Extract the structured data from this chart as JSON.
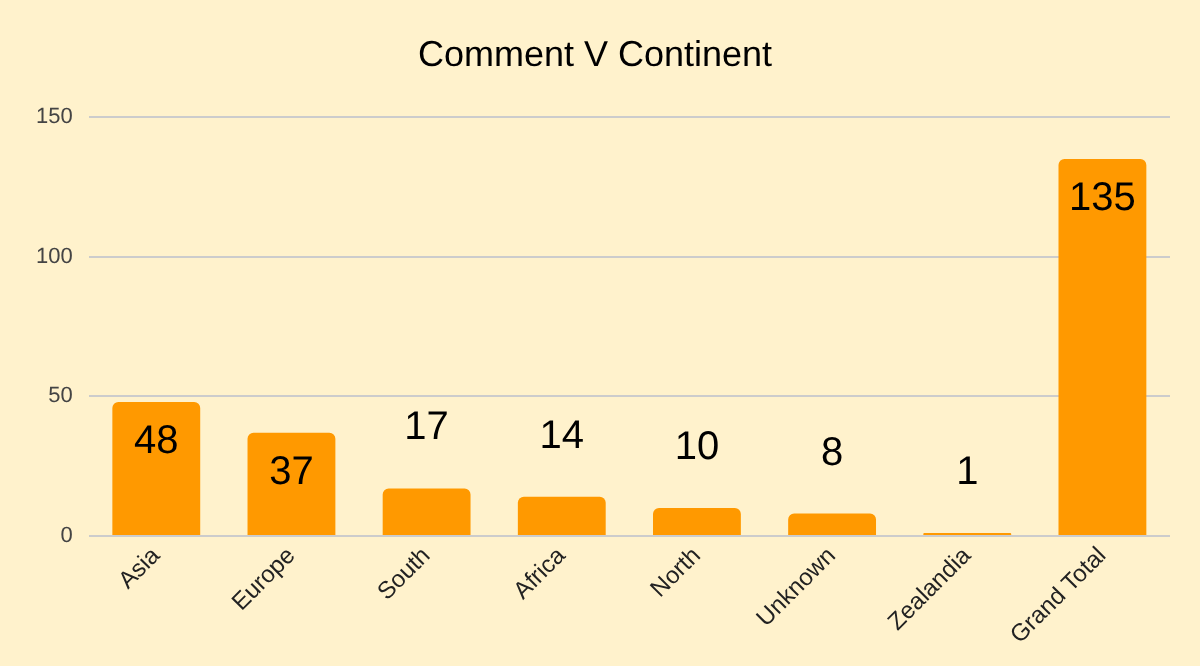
{
  "chart_data": {
    "type": "bar",
    "title": "Comment V Continent",
    "categories": [
      "Asia",
      "Europe",
      "South",
      "Africa",
      "North",
      "Unknown",
      "Zealandia",
      "Grand Total"
    ],
    "values": [
      48,
      37,
      17,
      14,
      10,
      8,
      1,
      135
    ],
    "color": "#ff9900",
    "ylim": [
      0,
      150
    ],
    "yticks": [
      0,
      50,
      100,
      150
    ],
    "grid": "y",
    "data_labels": true
  }
}
